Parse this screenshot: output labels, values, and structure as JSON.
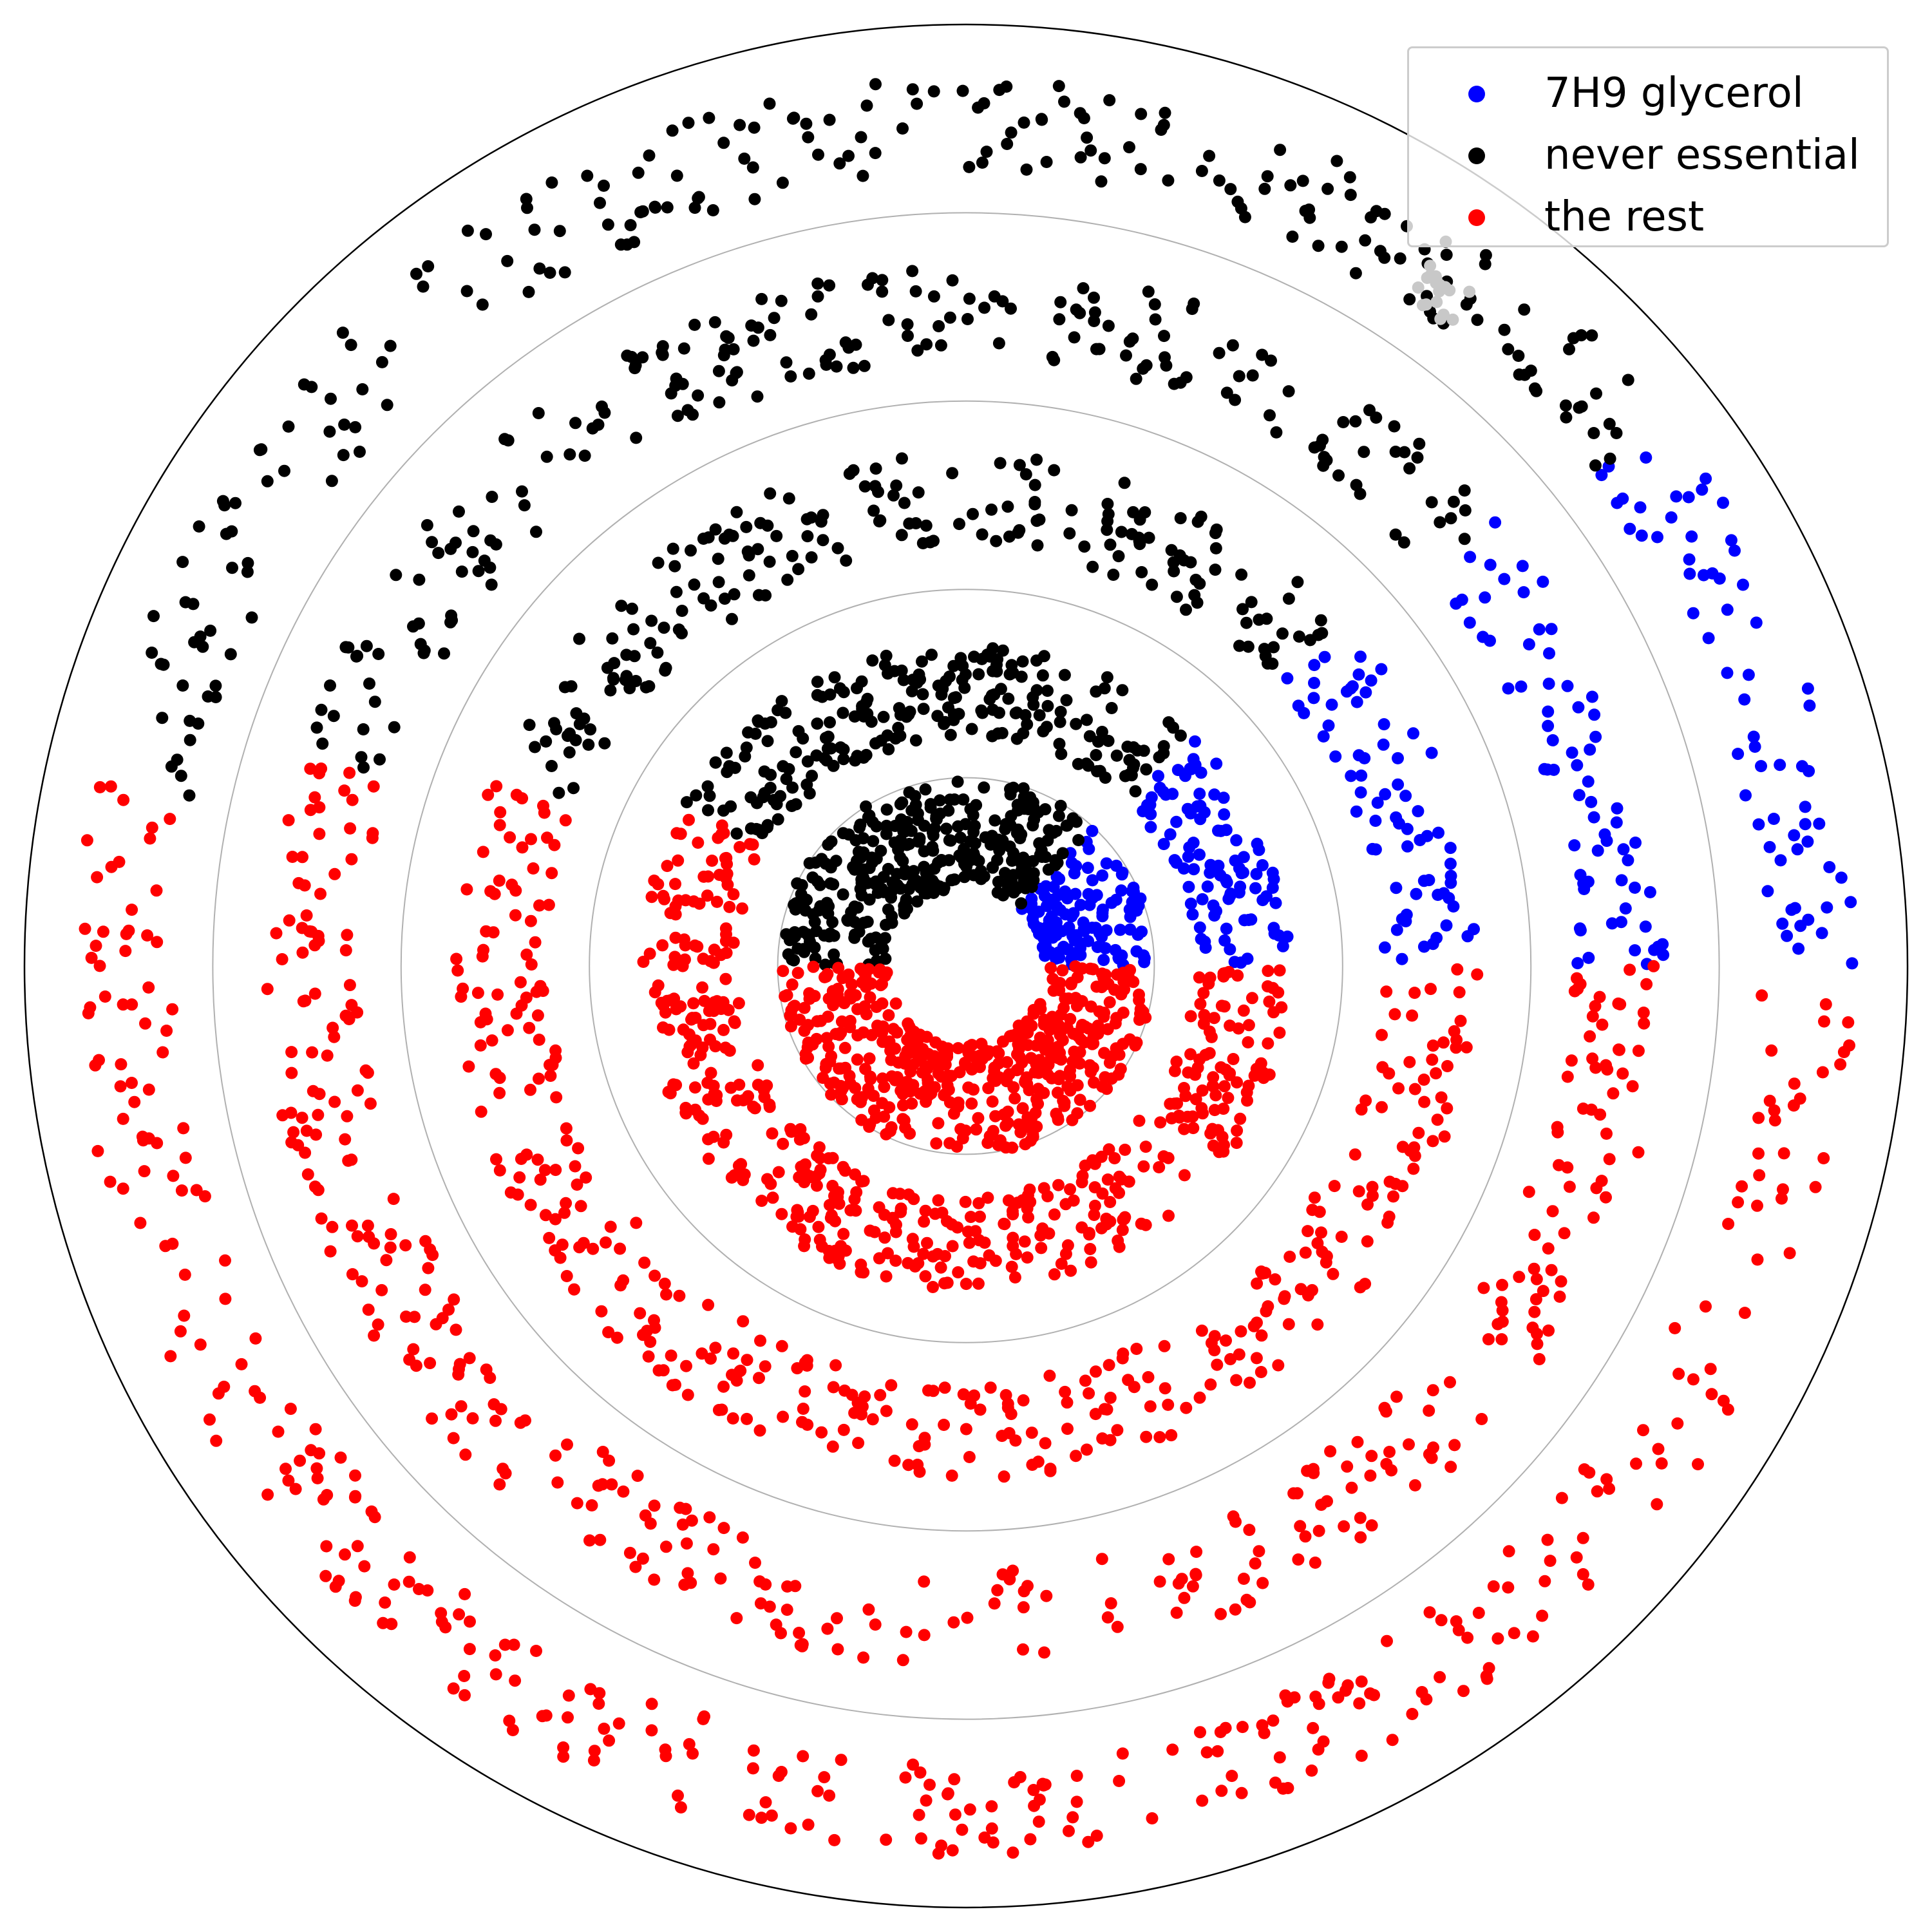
{
  "chart_data": {
    "type": "scatter",
    "projection": "polar",
    "title": "",
    "rings": [
      1,
      2,
      3,
      4,
      5
    ],
    "radial_grid": [
      1,
      2,
      3,
      4,
      5
    ],
    "grid": true,
    "angle_ticks": "hidden",
    "radius_ticks": "hidden",
    "rmax": 5,
    "legend_position": "top-right",
    "sectors_deg": [
      {
        "ring": 1,
        "blue": [
          0,
          48
        ],
        "black": [
          48,
          180
        ],
        "red": [
          180,
          360
        ]
      },
      {
        "ring": 2,
        "blue": [
          0,
          45
        ],
        "black": [
          45,
          150
        ],
        "red": [
          150,
          360
        ]
      },
      {
        "ring": 3,
        "blue": [
          0,
          42
        ],
        "black": [
          42,
          158
        ],
        "red": [
          158,
          360
        ]
      },
      {
        "ring": 4,
        "blue": [
          0,
          40
        ],
        "black": [
          40,
          162
        ],
        "red": [
          162,
          360
        ]
      },
      {
        "ring": 5,
        "blue": [
          0,
          38
        ],
        "black": [
          38,
          168
        ],
        "red": [
          168,
          360
        ]
      }
    ],
    "series": [
      {
        "name": "7H9 glycerol",
        "color": "#0000ff"
      },
      {
        "name": "never essential",
        "color": "#000000"
      },
      {
        "name": "the rest",
        "color": "#ff0000"
      }
    ]
  }
}
